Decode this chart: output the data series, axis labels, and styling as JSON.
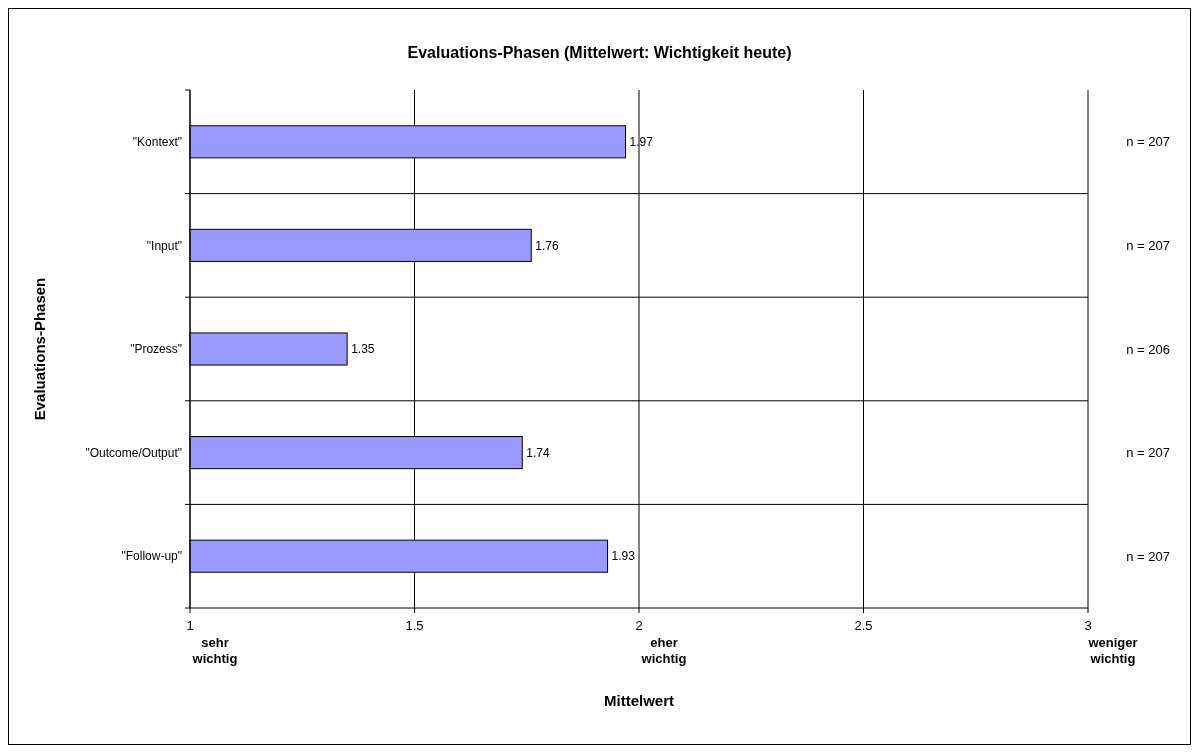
{
  "chart_data": {
    "type": "bar",
    "orientation": "horizontal",
    "title": "Evaluations-Phasen (Mittelwert: Wichtigkeit heute)",
    "xlabel": "Mittelwert",
    "ylabel": "Evaluations-Phasen",
    "categories": [
      "\"Kontext\"",
      "\"Input\"",
      "\"Prozess\"",
      "\"Outcome/Output\"",
      "\"Follow-up\""
    ],
    "values": [
      1.97,
      1.76,
      1.35,
      1.74,
      1.93
    ],
    "color": "#9999ff",
    "data_labels": true,
    "xlim": [
      1,
      3
    ],
    "xticks": [
      1,
      1.5,
      2,
      2.5,
      3
    ],
    "grid": true,
    "annotations": [
      "sehr wichtig",
      "eher wichtig",
      "weniger wichtig",
      "n = 207",
      "n = 207",
      "n = 206",
      "n = 207",
      "n = 207"
    ]
  }
}
